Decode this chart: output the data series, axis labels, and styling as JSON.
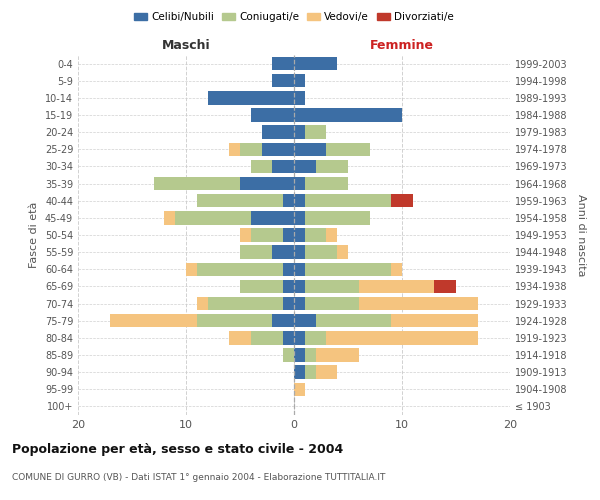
{
  "age_groups": [
    "100+",
    "95-99",
    "90-94",
    "85-89",
    "80-84",
    "75-79",
    "70-74",
    "65-69",
    "60-64",
    "55-59",
    "50-54",
    "45-49",
    "40-44",
    "35-39",
    "30-34",
    "25-29",
    "20-24",
    "15-19",
    "10-14",
    "5-9",
    "0-4"
  ],
  "birth_years": [
    "≤ 1903",
    "1904-1908",
    "1909-1913",
    "1914-1918",
    "1919-1923",
    "1924-1928",
    "1929-1933",
    "1934-1938",
    "1939-1943",
    "1944-1948",
    "1949-1953",
    "1954-1958",
    "1959-1963",
    "1964-1968",
    "1969-1973",
    "1974-1978",
    "1979-1983",
    "1984-1988",
    "1989-1993",
    "1994-1998",
    "1999-2003"
  ],
  "maschi": {
    "celibi": [
      0,
      0,
      0,
      0,
      1,
      2,
      1,
      1,
      1,
      2,
      1,
      4,
      1,
      5,
      2,
      3,
      3,
      4,
      8,
      2,
      2
    ],
    "coniugati": [
      0,
      0,
      0,
      1,
      3,
      7,
      7,
      4,
      8,
      3,
      3,
      7,
      8,
      8,
      2,
      2,
      0,
      0,
      0,
      0,
      0
    ],
    "vedovi": [
      0,
      0,
      0,
      0,
      2,
      8,
      1,
      0,
      1,
      0,
      1,
      1,
      0,
      0,
      0,
      1,
      0,
      0,
      0,
      0,
      0
    ],
    "divorziati": [
      0,
      0,
      0,
      0,
      0,
      0,
      0,
      0,
      0,
      0,
      0,
      0,
      0,
      0,
      0,
      0,
      0,
      0,
      0,
      0,
      0
    ]
  },
  "femmine": {
    "nubili": [
      0,
      0,
      1,
      1,
      1,
      2,
      1,
      1,
      1,
      1,
      1,
      1,
      1,
      1,
      2,
      3,
      1,
      10,
      1,
      1,
      4
    ],
    "coniugate": [
      0,
      0,
      1,
      1,
      2,
      7,
      5,
      5,
      8,
      3,
      2,
      6,
      8,
      4,
      3,
      4,
      2,
      0,
      0,
      0,
      0
    ],
    "vedove": [
      0,
      1,
      2,
      4,
      14,
      8,
      11,
      7,
      1,
      1,
      1,
      0,
      0,
      0,
      0,
      0,
      0,
      0,
      0,
      0,
      0
    ],
    "divorziate": [
      0,
      0,
      0,
      0,
      0,
      0,
      0,
      2,
      0,
      0,
      0,
      0,
      2,
      0,
      0,
      0,
      0,
      0,
      0,
      0,
      0
    ]
  },
  "colors": {
    "celibi_nubili": "#3c6ea5",
    "coniugati": "#b5c98e",
    "vedovi": "#f5c47f",
    "divorziati": "#c0392b"
  },
  "xlim": [
    -20,
    20
  ],
  "xticks": [
    -20,
    -10,
    0,
    10,
    20
  ],
  "xticklabels": [
    "20",
    "10",
    "0",
    "10",
    "20"
  ],
  "title": "Popolazione per età, sesso e stato civile - 2004",
  "subtitle": "COMUNE DI GURRO (VB) - Dati ISTAT 1° gennaio 2004 - Elaborazione TUTTITALIA.IT",
  "ylabel_left": "Fasce di età",
  "ylabel_right": "Anni di nascita",
  "header_maschi": "Maschi",
  "header_femmine": "Femmine",
  "legend_labels": [
    "Celibi/Nubili",
    "Coniugati/e",
    "Vedovi/e",
    "Divorziati/e"
  ],
  "background_color": "#ffffff",
  "grid_color": "#cccccc"
}
